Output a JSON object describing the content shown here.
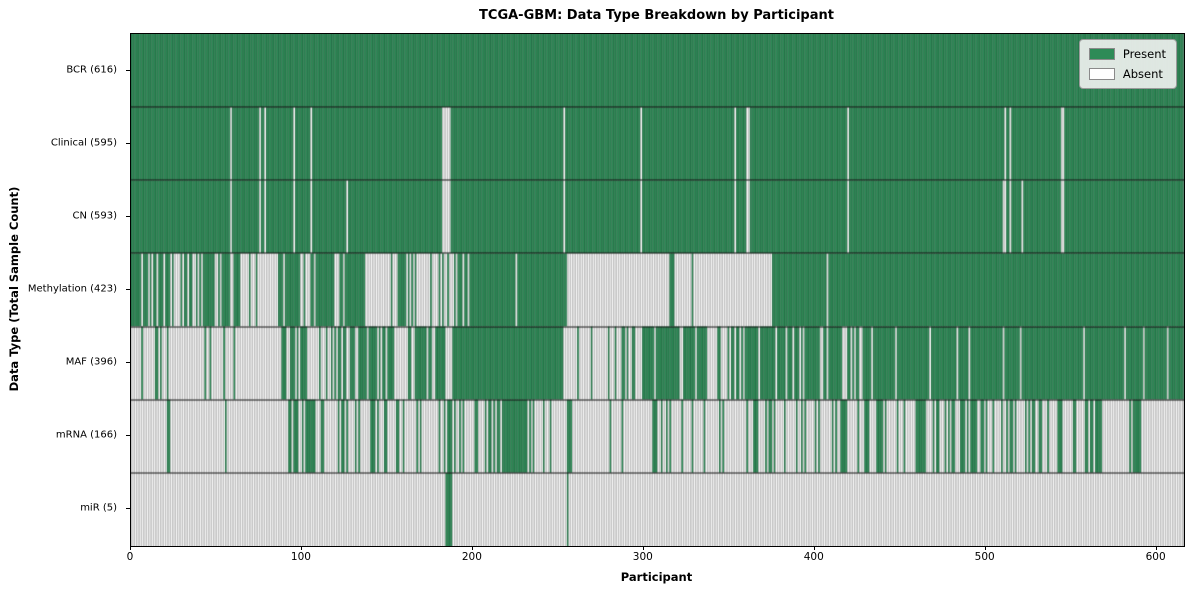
{
  "chart_data": {
    "type": "heatmap",
    "title": "TCGA-GBM: Data Type Breakdown by Participant",
    "xlabel": "Participant",
    "ylabel": "Data Type (Total Sample Count)",
    "n_participants": 616,
    "x_ticks": [
      0,
      100,
      200,
      300,
      400,
      500,
      600
    ],
    "legend_position": "upper right",
    "grid": false,
    "colors": {
      "present": "#2e8b57",
      "present_edge": "rgba(10,40,25,0.45)",
      "absent": "#fafafa",
      "absent_edge": "rgba(125,125,125,0.85)",
      "row_separator": "#111111",
      "plot_border": "#000000",
      "legend_bg": "#eef0ee"
    },
    "legend": [
      {
        "label": "Present",
        "color": "#2e8b57"
      },
      {
        "label": "Absent",
        "color": "#ffffff"
      }
    ],
    "rows": [
      {
        "label": "BCR (616)",
        "present_count": 616,
        "segments": [
          [
            0,
            616,
            1
          ]
        ]
      },
      {
        "label": "Clinical (595)",
        "present_count": 595,
        "segments": [
          [
            0,
            58,
            1
          ],
          [
            58,
            59,
            0
          ],
          [
            59,
            75,
            1
          ],
          [
            75,
            76,
            0
          ],
          [
            76,
            78,
            1
          ],
          [
            78,
            79,
            0
          ],
          [
            79,
            95,
            1
          ],
          [
            95,
            96,
            0
          ],
          [
            96,
            105,
            1
          ],
          [
            105,
            106,
            0
          ],
          [
            106,
            182,
            1
          ],
          [
            182,
            187,
            0
          ],
          [
            187,
            253,
            1
          ],
          [
            253,
            254,
            0
          ],
          [
            254,
            298,
            1
          ],
          [
            298,
            299,
            0
          ],
          [
            299,
            353,
            1
          ],
          [
            353,
            354,
            0
          ],
          [
            354,
            360,
            1
          ],
          [
            360,
            362,
            0
          ],
          [
            362,
            419,
            1
          ],
          [
            419,
            420,
            0
          ],
          [
            420,
            511,
            1
          ],
          [
            511,
            512,
            0
          ],
          [
            512,
            514,
            1
          ],
          [
            514,
            515,
            0
          ],
          [
            515,
            544,
            1
          ],
          [
            544,
            546,
            0
          ],
          [
            546,
            616,
            1
          ]
        ]
      },
      {
        "label": "CN (593)",
        "present_count": 593,
        "segments": [
          [
            0,
            58,
            1
          ],
          [
            58,
            59,
            0
          ],
          [
            59,
            75,
            1
          ],
          [
            75,
            76,
            0
          ],
          [
            76,
            78,
            1
          ],
          [
            78,
            79,
            0
          ],
          [
            79,
            95,
            1
          ],
          [
            95,
            96,
            0
          ],
          [
            96,
            105,
            1
          ],
          [
            105,
            106,
            0
          ],
          [
            106,
            126,
            1
          ],
          [
            126,
            127,
            0
          ],
          [
            127,
            182,
            1
          ],
          [
            182,
            187,
            0
          ],
          [
            187,
            253,
            1
          ],
          [
            253,
            254,
            0
          ],
          [
            254,
            298,
            1
          ],
          [
            298,
            299,
            0
          ],
          [
            299,
            353,
            1
          ],
          [
            353,
            354,
            0
          ],
          [
            354,
            360,
            1
          ],
          [
            360,
            362,
            0
          ],
          [
            362,
            419,
            1
          ],
          [
            419,
            420,
            0
          ],
          [
            420,
            510,
            1
          ],
          [
            510,
            512,
            0
          ],
          [
            512,
            514,
            1
          ],
          [
            514,
            515,
            0
          ],
          [
            515,
            521,
            1
          ],
          [
            521,
            522,
            0
          ],
          [
            522,
            544,
            1
          ],
          [
            544,
            546,
            0
          ],
          [
            546,
            616,
            1
          ]
        ]
      },
      {
        "label": "Methylation (423)",
        "present_count": 423,
        "segments": [
          [
            0,
            18,
            0.72
          ],
          [
            18,
            40,
            0.5
          ],
          [
            40,
            64,
            0.8
          ],
          [
            64,
            80,
            0.35
          ],
          [
            80,
            86,
            0
          ],
          [
            86,
            99,
            0.9
          ],
          [
            99,
            105,
            0.1
          ],
          [
            105,
            119,
            0.85
          ],
          [
            119,
            122,
            0
          ],
          [
            122,
            138,
            0.8
          ],
          [
            138,
            156,
            0.12
          ],
          [
            156,
            162,
            0.7
          ],
          [
            162,
            185,
            0.2
          ],
          [
            185,
            191,
            0.35
          ],
          [
            191,
            197,
            0.8
          ],
          [
            197,
            255,
            0.97
          ],
          [
            255,
            315,
            0.02
          ],
          [
            315,
            318,
            0.8
          ],
          [
            318,
            375,
            0.02
          ],
          [
            375,
            407,
            1
          ],
          [
            407,
            408,
            0
          ],
          [
            408,
            616,
            0.995
          ]
        ]
      },
      {
        "label": "MAF (396)",
        "present_count": 396,
        "segments": [
          [
            0,
            19,
            0.15
          ],
          [
            19,
            88,
            0.06
          ],
          [
            88,
            103,
            0.7
          ],
          [
            103,
            113,
            0.4
          ],
          [
            113,
            136,
            0.6
          ],
          [
            136,
            154,
            0.8
          ],
          [
            154,
            162,
            0.05
          ],
          [
            162,
            171,
            0.9
          ],
          [
            171,
            179,
            0.35
          ],
          [
            179,
            184,
            0.9
          ],
          [
            184,
            188,
            0
          ],
          [
            188,
            253,
            0.96
          ],
          [
            253,
            283,
            0.12
          ],
          [
            283,
            298,
            0.3
          ],
          [
            298,
            339,
            0.72
          ],
          [
            339,
            349,
            0.25
          ],
          [
            349,
            386,
            0.85
          ],
          [
            386,
            430,
            0.7
          ],
          [
            430,
            470,
            0.88
          ],
          [
            470,
            616,
            0.95
          ]
        ]
      },
      {
        "label": "mRNA (166)",
        "present_count": 166,
        "segments": [
          [
            0,
            23,
            0.08
          ],
          [
            23,
            90,
            0.03
          ],
          [
            90,
            109,
            0.5
          ],
          [
            109,
            121,
            0.15
          ],
          [
            121,
            127,
            0.8
          ],
          [
            127,
            158,
            0.3
          ],
          [
            158,
            170,
            0.5
          ],
          [
            170,
            179,
            0.08
          ],
          [
            179,
            195,
            0.55
          ],
          [
            195,
            207,
            0.15
          ],
          [
            207,
            236,
            0.75
          ],
          [
            236,
            255,
            0.05
          ],
          [
            255,
            258,
            0.7
          ],
          [
            258,
            280,
            0.04
          ],
          [
            280,
            283,
            0.7
          ],
          [
            283,
            305,
            0.05
          ],
          [
            305,
            312,
            0.4
          ],
          [
            312,
            356,
            0.1
          ],
          [
            356,
            375,
            0.55
          ],
          [
            375,
            384,
            0.15
          ],
          [
            384,
            391,
            0.7
          ],
          [
            391,
            412,
            0.2
          ],
          [
            412,
            421,
            0.6
          ],
          [
            421,
            436,
            0.2
          ],
          [
            436,
            443,
            0.65
          ],
          [
            443,
            455,
            0.2
          ],
          [
            455,
            500,
            0.5
          ],
          [
            500,
            525,
            0.4
          ],
          [
            525,
            548,
            0.4
          ],
          [
            548,
            557,
            0.2
          ],
          [
            557,
            568,
            0.7
          ],
          [
            568,
            585,
            0.25
          ],
          [
            585,
            591,
            0.75
          ],
          [
            591,
            616,
            0.03
          ]
        ]
      },
      {
        "label": "miR (5)",
        "present_count": 5,
        "segments": [
          [
            0,
            184,
            0
          ],
          [
            184,
            188,
            1
          ],
          [
            188,
            255,
            0
          ],
          [
            255,
            256,
            1
          ],
          [
            256,
            616,
            0
          ]
        ]
      }
    ]
  }
}
